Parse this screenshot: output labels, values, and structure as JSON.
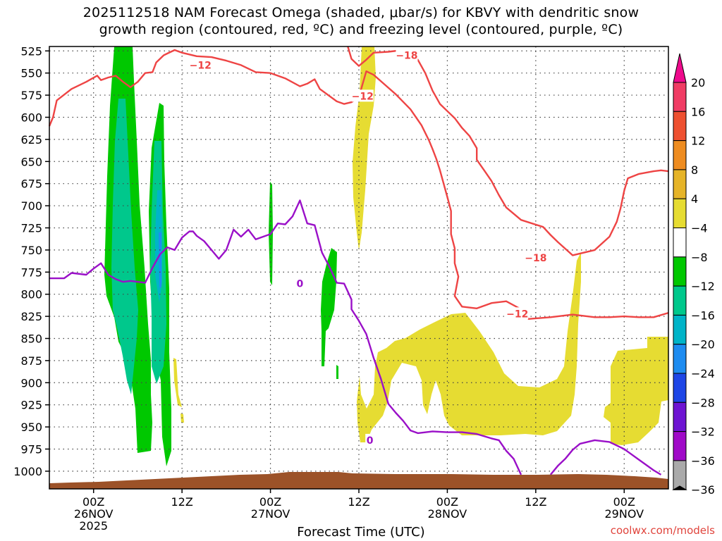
{
  "title_line1": "2025112518 NAM Forecast Omega (shaded, μbar/s) for KBVY with dendritic snow",
  "title_line2": "growth region (contoured, red, ºC) and freezing level (contoured, purple, ºC)",
  "credit": "coolwx.com/models",
  "chart_data": {
    "type": "time-height cross section",
    "xlabel": "Forecast Time (UTC)",
    "x_ticks": [
      {
        "hour": 0,
        "label": "00Z",
        "sub": "26NOV",
        "sub2": "2025"
      },
      {
        "hour": 12,
        "label": "12Z",
        "sub": "",
        "sub2": ""
      },
      {
        "hour": 24,
        "label": "00Z",
        "sub": "27NOV",
        "sub2": ""
      },
      {
        "hour": 36,
        "label": "12Z",
        "sub": "",
        "sub2": ""
      },
      {
        "hour": 48,
        "label": "00Z",
        "sub": "28NOV",
        "sub2": ""
      },
      {
        "hour": 60,
        "label": "12Z",
        "sub": "",
        "sub2": ""
      },
      {
        "hour": 72,
        "label": "00Z",
        "sub": "29NOV",
        "sub2": ""
      }
    ],
    "x_range_hours": [
      -6,
      78
    ],
    "y_levels_hPa": [
      "525",
      "550",
      "575",
      "600",
      "625",
      "650",
      "675",
      "700",
      "725",
      "750",
      "775",
      "800",
      "825",
      "850",
      "875",
      "900",
      "925",
      "950",
      "975",
      "1000"
    ],
    "y_range_hPa": [
      520,
      1020
    ],
    "grid": true,
    "colorbar": {
      "labels": [
        "20",
        "16",
        "12",
        "8",
        "4",
        "−4",
        "−8",
        "−12",
        "−16",
        "−20",
        "−24",
        "−28",
        "−32",
        "−36"
      ],
      "colors": [
        "#f03c64",
        "#ee5030",
        "#ee8c20",
        "#e6b428",
        "#e6dc32",
        "#ffffff",
        "#00c800",
        "#00c88c",
        "#00b4c8",
        "#1e8cf0",
        "#1e46e6",
        "#6e14d2",
        "#a00ac8",
        "#aaaaaa"
      ]
    },
    "contour_labels": {
      "dgz": [
        {
          "hour": 14.5,
          "p": 541,
          "text": "−12"
        },
        {
          "hour": 36.5,
          "p": 576,
          "text": "−12"
        },
        {
          "hour": 42.5,
          "p": 530,
          "text": "−18"
        },
        {
          "hour": 60.0,
          "p": 759,
          "text": "−18"
        },
        {
          "hour": 57.5,
          "p": 822,
          "text": "−12"
        }
      ],
      "freezing": [
        {
          "hour": 28.0,
          "p": 788,
          "text": "0"
        },
        {
          "hour": 37.5,
          "p": 965,
          "text": "0"
        }
      ]
    },
    "series": {
      "dgz_minus12": {
        "color": "#ee4444",
        "segments": [
          [
            [
              -6,
              610
            ],
            [
              -5.5,
              600
            ],
            [
              -5,
              581
            ],
            [
              -3,
              568
            ],
            [
              -1,
              560
            ],
            [
              0.5,
              553
            ],
            [
              1,
              558
            ],
            [
              2,
              555
            ],
            [
              3,
              553
            ],
            [
              4,
              560
            ],
            [
              5,
              566
            ],
            [
              6,
              560
            ],
            [
              7,
              550
            ],
            [
              8,
              549
            ],
            [
              8.5,
              538
            ],
            [
              9.5,
              530
            ],
            [
              10,
              528
            ],
            [
              11,
              524
            ],
            [
              12,
              527
            ],
            [
              14,
              531
            ],
            [
              16,
              532
            ],
            [
              18,
              536
            ],
            [
              20,
              541
            ],
            [
              22,
              549
            ],
            [
              24,
              550
            ],
            [
              26,
              556
            ],
            [
              28,
              565
            ],
            [
              29,
              562
            ],
            [
              30,
              557
            ],
            [
              30.7,
              568
            ],
            [
              33,
              582
            ],
            [
              34,
              585
            ],
            [
              35,
              583
            ],
            [
              36,
              577
            ],
            [
              37,
              548
            ],
            [
              38,
              552
            ],
            [
              39.5,
              563
            ],
            [
              41,
              574
            ],
            [
              43,
              591
            ],
            [
              44.5,
              609
            ],
            [
              45.5,
              626
            ],
            [
              46,
              636
            ],
            [
              46.5,
              647
            ],
            [
              47,
              660
            ],
            [
              47.5,
              675
            ],
            [
              48,
              690
            ],
            [
              48.5,
              706
            ],
            [
              48.5,
              732
            ],
            [
              49,
              748
            ],
            [
              49,
              765
            ],
            [
              49.5,
              780
            ],
            [
              49,
              802
            ],
            [
              50,
              814
            ],
            [
              52,
              816
            ],
            [
              54,
              810
            ],
            [
              56,
              808
            ],
            [
              58,
              817
            ],
            [
              59,
              828
            ],
            [
              62,
              826
            ],
            [
              65,
              823
            ],
            [
              68,
              826
            ],
            [
              70,
              826
            ],
            [
              72,
              825
            ],
            [
              74,
              826
            ],
            [
              76,
              826
            ],
            [
              78,
              821
            ]
          ]
        ]
      },
      "dgz_minus18": {
        "color": "#ee4444",
        "segments": [
          [
            [
              34.5,
              520
            ],
            [
              35,
              534
            ],
            [
              36,
              542
            ],
            [
              37,
              535
            ],
            [
              38,
              527
            ],
            [
              40,
              526
            ],
            [
              42,
              524
            ],
            [
              44,
              535
            ],
            [
              45,
              550
            ],
            [
              46,
              570
            ],
            [
              47,
              585
            ],
            [
              48,
              593
            ],
            [
              49,
              601
            ],
            [
              50,
              612
            ],
            [
              51,
              621
            ],
            [
              52,
              635
            ],
            [
              52,
              648
            ],
            [
              53,
              660
            ],
            [
              54,
              672
            ],
            [
              55,
              688
            ],
            [
              56,
              702
            ],
            [
              58,
              716
            ],
            [
              61,
              724
            ],
            [
              62,
              733
            ],
            [
              63,
              741
            ],
            [
              65,
              756
            ],
            [
              68,
              750
            ],
            [
              70,
              735
            ],
            [
              71,
              718
            ],
            [
              71.5,
              703
            ],
            [
              72,
              683
            ],
            [
              72.5,
              669
            ],
            [
              74,
              664
            ],
            [
              76,
              661
            ],
            [
              77,
              660
            ],
            [
              78,
              661
            ]
          ]
        ]
      },
      "freezing_level": {
        "color": "#9a10c8",
        "segments": [
          [
            [
              -6,
              782
            ],
            [
              -4,
              782
            ],
            [
              -3,
              776
            ],
            [
              -1,
              778
            ],
            [
              0,
              771
            ],
            [
              1,
              765
            ],
            [
              2,
              778
            ],
            [
              3,
              783
            ],
            [
              4,
              786
            ],
            [
              5,
              785
            ],
            [
              6,
              786
            ],
            [
              7,
              787
            ],
            [
              8,
              770
            ],
            [
              9,
              755
            ],
            [
              10,
              747
            ],
            [
              11,
              750
            ],
            [
              12,
              736
            ],
            [
              13,
              729
            ],
            [
              13.5,
              729
            ],
            [
              14,
              734
            ],
            [
              15,
              740
            ],
            [
              16,
              750
            ],
            [
              17,
              760
            ],
            [
              18,
              750
            ],
            [
              19,
              727
            ],
            [
              20,
              735
            ],
            [
              21,
              727
            ],
            [
              22,
              738
            ],
            [
              24,
              732
            ],
            [
              25,
              720
            ],
            [
              26,
              721
            ],
            [
              27,
              712
            ],
            [
              28,
              694
            ],
            [
              29,
              720
            ],
            [
              30,
              722
            ],
            [
              31,
              753
            ],
            [
              32,
              769
            ],
            [
              33,
              787
            ],
            [
              34,
              788
            ],
            [
              35,
              806
            ],
            [
              35,
              817
            ],
            [
              36,
              830
            ],
            [
              37,
              845
            ],
            [
              38,
              872
            ],
            [
              39,
              896
            ],
            [
              40,
              924
            ],
            [
              41,
              934
            ],
            [
              42,
              943
            ],
            [
              43,
              954
            ],
            [
              44,
              957
            ],
            [
              46,
              955
            ],
            [
              48,
              956
            ],
            [
              50,
              956
            ],
            [
              52,
              958
            ],
            [
              54,
              963
            ],
            [
              55,
              965
            ],
            [
              56,
              977
            ],
            [
              57,
              986
            ],
            [
              58,
              1004
            ]
          ],
          [
            [
              62,
              1004
            ],
            [
              63,
              994
            ],
            [
              64,
              986
            ],
            [
              65,
              976
            ],
            [
              66,
              969
            ],
            [
              68,
              965
            ],
            [
              70,
              967
            ],
            [
              72,
              975
            ],
            [
              74,
              987
            ],
            [
              76,
              999
            ],
            [
              77,
              1004
            ]
          ]
        ]
      }
    }
  }
}
